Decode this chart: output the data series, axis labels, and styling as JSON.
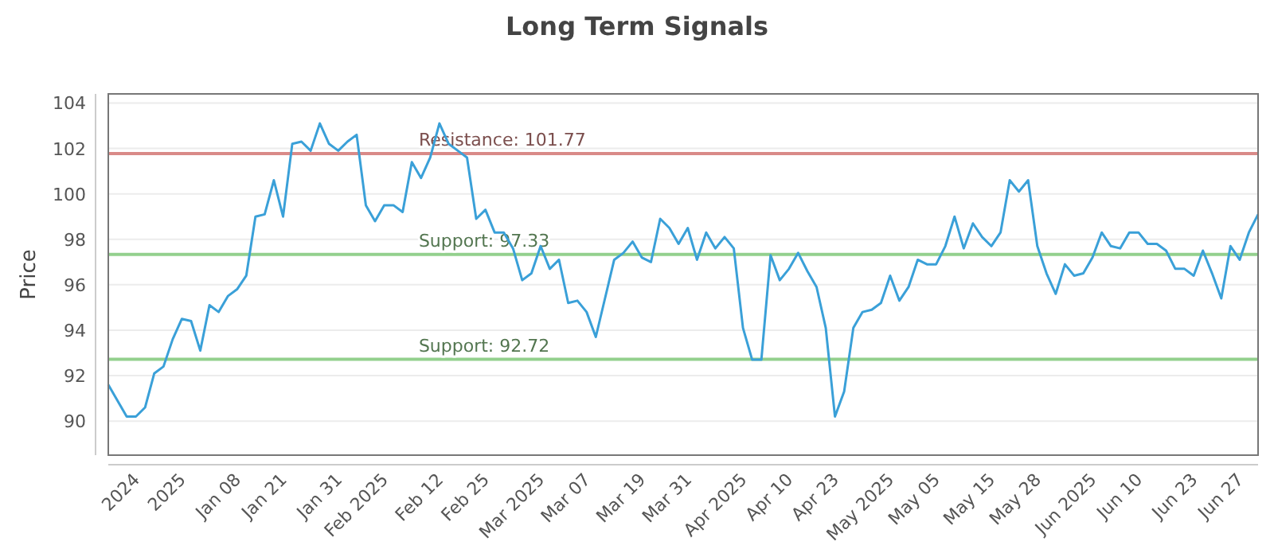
{
  "chart_data": {
    "type": "line",
    "title": "Long Term Signals",
    "ylabel": "Price",
    "categories": [
      null,
      null,
      null,
      "2024",
      null,
      null,
      null,
      null,
      "2025",
      null,
      null,
      null,
      null,
      null,
      "Jan 08",
      null,
      null,
      null,
      null,
      "Jan 21",
      null,
      null,
      null,
      null,
      null,
      "Jan 31",
      null,
      null,
      null,
      null,
      "Feb 2025",
      null,
      null,
      null,
      null,
      null,
      "Feb 12",
      null,
      null,
      null,
      null,
      "Feb 25",
      null,
      null,
      null,
      null,
      null,
      "Mar 2025",
      null,
      null,
      null,
      null,
      "Mar 07",
      null,
      null,
      null,
      null,
      null,
      "Mar 19",
      null,
      null,
      null,
      null,
      "Mar 31",
      null,
      null,
      null,
      null,
      null,
      "Apr 2025",
      null,
      null,
      null,
      null,
      "Apr 10",
      null,
      null,
      null,
      null,
      "Apr 23",
      null,
      null,
      null,
      null,
      null,
      "May 2025",
      null,
      null,
      null,
      null,
      "May 05",
      null,
      null,
      null,
      null,
      null,
      "May 15",
      null,
      null,
      null,
      null,
      "May 28",
      null,
      null,
      null,
      null,
      null,
      "Jun 2025",
      null,
      null,
      null,
      null,
      "Jun 10",
      null,
      null,
      null,
      null,
      null,
      "Jun 23",
      null,
      null,
      null,
      null,
      "Jun 27",
      null,
      null
    ],
    "series": [
      {
        "color": "#3aa0d8",
        "values": [
          91.6,
          90.9,
          90.2,
          90.2,
          90.6,
          92.1,
          92.4,
          93.6,
          94.5,
          94.4,
          93.1,
          95.1,
          94.8,
          95.5,
          95.8,
          96.4,
          99.0,
          99.1,
          100.6,
          99.0,
          102.2,
          102.3,
          101.9,
          103.1,
          102.2,
          101.9,
          102.3,
          102.6,
          99.5,
          98.8,
          99.5,
          99.5,
          99.2,
          101.4,
          100.7,
          101.6,
          103.1,
          102.2,
          101.9,
          101.6,
          98.9,
          99.3,
          98.3,
          98.3,
          97.6,
          96.2,
          96.5,
          97.7,
          96.7,
          97.1,
          95.2,
          95.3,
          94.8,
          93.7,
          95.4,
          97.1,
          97.4,
          97.9,
          97.2,
          97.0,
          98.9,
          98.5,
          97.8,
          98.5,
          97.1,
          98.3,
          97.6,
          98.1,
          97.6,
          94.1,
          92.7,
          92.7,
          97.3,
          96.2,
          96.7,
          97.4,
          96.6,
          95.9,
          94.1,
          90.2,
          91.3,
          94.1,
          94.8,
          94.9,
          95.2,
          96.4,
          95.3,
          95.9,
          97.1,
          96.9,
          96.9,
          97.7,
          99.0,
          97.6,
          98.7,
          98.1,
          97.7,
          98.3,
          100.6,
          100.1,
          100.6,
          97.7,
          96.5,
          95.6,
          96.9,
          96.4,
          96.5,
          97.2,
          98.3,
          97.7,
          97.6,
          98.3,
          98.3,
          97.8,
          97.8,
          97.5,
          96.7,
          96.7,
          96.4,
          97.5,
          96.5,
          95.4,
          97.7,
          97.1,
          98.3,
          99.1
        ]
      }
    ],
    "ylim": [
      88.5,
      104.4
    ],
    "yticks": [
      90,
      92,
      94,
      96,
      98,
      100,
      102,
      104
    ],
    "grid": "y",
    "marker": "none",
    "line_style": "solid",
    "ref_lines": [
      {
        "axis": "y",
        "value": 101.77,
        "label": "Resistance: 101.77",
        "color": "#d98a88"
      },
      {
        "axis": "y",
        "value": 97.33,
        "label": "Support: 97.33",
        "color": "#93d08d"
      },
      {
        "axis": "y",
        "value": 92.72,
        "label": "Support: 92.72",
        "color": "#93d08d"
      }
    ]
  }
}
